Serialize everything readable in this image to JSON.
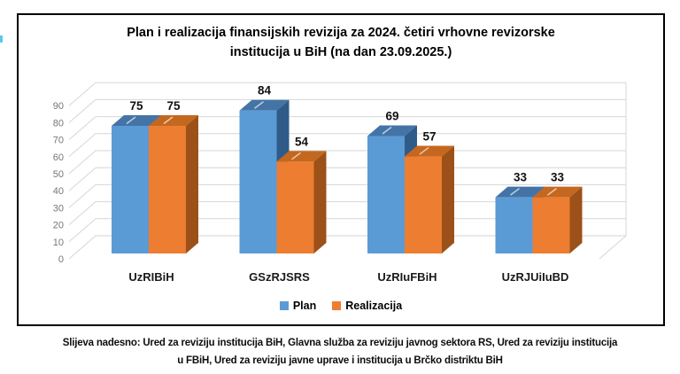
{
  "title": {
    "line1": "Plan i realizacija finansijskih revizija za 2024. četiri vrhovne revizorske",
    "line2": "institucija u BiH (na dan 23.09.2025.)"
  },
  "legend": {
    "items": [
      {
        "label": "Plan",
        "color": "#5B9BD5"
      },
      {
        "label": "Realizacija",
        "color": "#ED7D31"
      }
    ]
  },
  "caption": {
    "line1": "Slijeva nadesno: Ured za reviziju institucija BiH, Glavna služba za reviziju javnog sektora RS, Ured za reviziju institucija",
    "line2": "u FBiH, Ured za reviziju javne uprave i institucija u Brčko distriktu BiH"
  },
  "chart_data": {
    "type": "bar",
    "projection": "3d",
    "title": "Plan i realizacija finansijskih revizija za 2024. četiri vrhovne revizorske institucija u BiH (na dan 23.09.2025.)",
    "categories": [
      "UzRIBiH",
      "GSzRJSRS",
      "UzRIuFBiH",
      "UzRJUiIuBD"
    ],
    "series": [
      {
        "name": "Plan",
        "color": "#5B9BD5",
        "top_color": "#4474A6",
        "side_color": "#2F5B88",
        "values": [
          75,
          84,
          69,
          33
        ]
      },
      {
        "name": "Realizacija",
        "color": "#ED7D31",
        "top_color": "#C4681F",
        "side_color": "#9C5118",
        "values": [
          75,
          54,
          57,
          33
        ]
      }
    ],
    "data_labels_shown": true,
    "ylim": [
      0,
      90
    ],
    "ytick_step": 10,
    "grid": true,
    "legend_position": "bottom",
    "axis_label_color": "#767676",
    "grid_color": "#d6d6d6"
  }
}
